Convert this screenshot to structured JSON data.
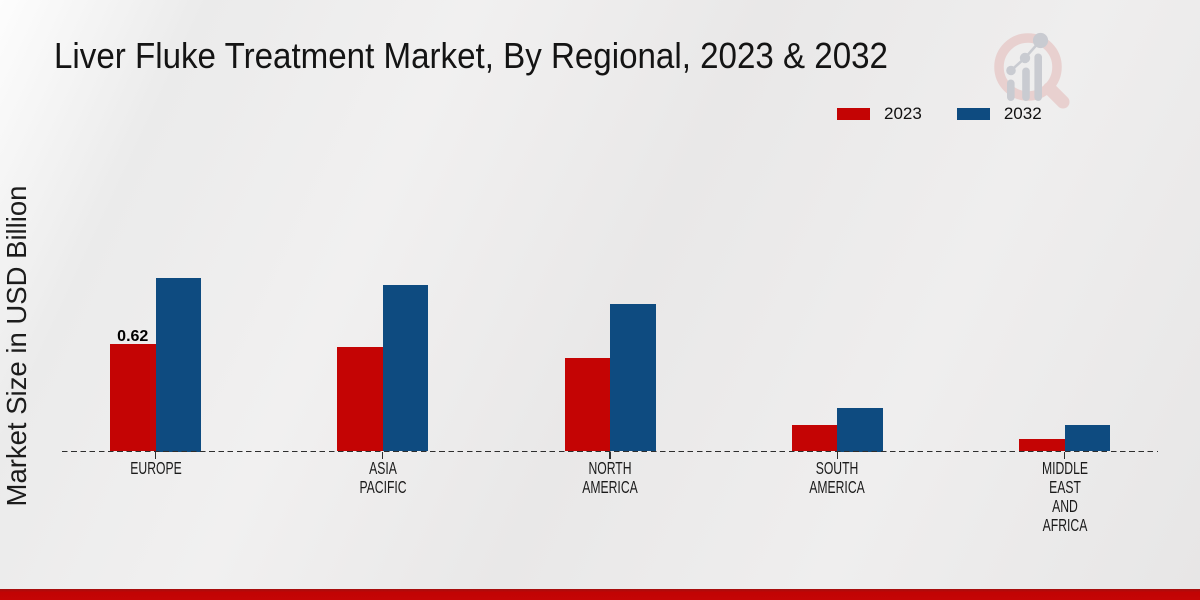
{
  "chart_data": {
    "type": "bar",
    "title": "Liver Fluke Treatment Market, By Regional, 2023 & 2032",
    "ylabel": "Market Size in USD Billion",
    "xlabel": "",
    "categories": [
      "EUROPE",
      "ASIA\nPACIFIC",
      "NORTH\nAMERICA",
      "SOUTH\nAMERICA",
      "MIDDLE\nEAST\nAND\nAFRICA"
    ],
    "series": [
      {
        "name": "2023",
        "color": "#c40404",
        "values": [
          0.62,
          0.6,
          0.54,
          0.15,
          0.07
        ]
      },
      {
        "name": "2032",
        "color": "#0e4b80",
        "values": [
          1.0,
          0.96,
          0.85,
          0.25,
          0.15
        ]
      }
    ],
    "bar_labels": [
      {
        "category_index": 0,
        "series_index": 0,
        "text": "0.62"
      }
    ],
    "ylim": [
      0,
      1.1
    ],
    "grid": false,
    "legend_position": "top-right",
    "baseline_style": "dashed"
  },
  "branding": {
    "logo": "market-research-magnifier-logo",
    "accent_red": "#c40404",
    "accent_blue": "#0e4b80"
  }
}
